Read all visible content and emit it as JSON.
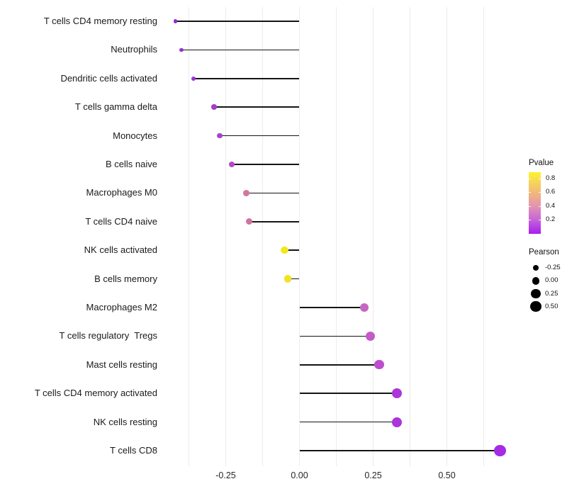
{
  "chart_data": {
    "type": "scatter",
    "subtype": "lollipop",
    "title": "",
    "xlabel": "",
    "ylabel": "",
    "background_color": "#FFFFFF",
    "stem_color": "#141414",
    "grid_color": "#ECECEC",
    "axis_text_color": "#262626",
    "xlim": [
      -0.48,
      0.74
    ],
    "x_ticks": [
      -0.25,
      0,
      0.25,
      0.5
    ],
    "x_tick_labels": [
      "-0.25",
      "0.00",
      "0.25",
      "0.50"
    ],
    "grid": {
      "vertical_lines_from": -0.375,
      "vertical_lines_to": 0.625,
      "vertical_lines_step": 0.125,
      "horizontal_lines": false
    },
    "points": [
      {
        "label": "T cells CD4 memory resting",
        "pearson": -0.42,
        "pvalue_approx": 0.1,
        "color": "#8F2BD6"
      },
      {
        "label": "Neutrophils",
        "pearson": -0.4,
        "pvalue_approx": 0.11,
        "color": "#9230D3"
      },
      {
        "label": "Dendritic cells activated",
        "pearson": -0.36,
        "pvalue_approx": 0.13,
        "color": "#9A34D0"
      },
      {
        "label": "T cells gamma delta",
        "pearson": -0.29,
        "pvalue_approx": 0.18,
        "color": "#A43DCC"
      },
      {
        "label": "Monocytes",
        "pearson": -0.27,
        "pvalue_approx": 0.22,
        "color": "#A840CE"
      },
      {
        "label": "B cells naive",
        "pearson": -0.23,
        "pvalue_approx": 0.27,
        "color": "#B24AC9"
      },
      {
        "label": "Macrophages M0",
        "pearson": -0.18,
        "pvalue_approx": 0.48,
        "color": "#D3779F"
      },
      {
        "label": "T cells CD4 naive",
        "pearson": -0.17,
        "pvalue_approx": 0.47,
        "color": "#D1739E"
      },
      {
        "label": "NK cells activated",
        "pearson": -0.05,
        "pvalue_approx": 0.85,
        "color": "#F1E822"
      },
      {
        "label": "B cells memory",
        "pearson": -0.04,
        "pvalue_approx": 0.87,
        "color": "#F2E320"
      },
      {
        "label": "Macrophages M2",
        "pearson": 0.22,
        "pvalue_approx": 0.35,
        "color": "#C765C3"
      },
      {
        "label": "T cells regulatory  Tregs",
        "pearson": 0.24,
        "pvalue_approx": 0.3,
        "color": "#C35BC8"
      },
      {
        "label": "Mast cells resting",
        "pearson": 0.27,
        "pvalue_approx": 0.24,
        "color": "#BE4CCF"
      },
      {
        "label": "T cells CD4 memory activated",
        "pearson": 0.33,
        "pvalue_approx": 0.14,
        "color": "#AD35DC"
      },
      {
        "label": "NK cells resting",
        "pearson": 0.33,
        "pvalue_approx": 0.14,
        "color": "#AC34DD"
      },
      {
        "label": "T cells CD8",
        "pearson": 0.68,
        "pvalue_approx": 0.06,
        "color": "#A62BE2"
      }
    ],
    "legend_pvalue": {
      "title": "Pvalue",
      "position": "right",
      "range": [
        0,
        0.89
      ],
      "tick_values": [
        0.8,
        0.6,
        0.4,
        0.2
      ],
      "tick_labels": [
        "0.8",
        "0.6",
        "0.4",
        "0.2"
      ],
      "gradient_stops": [
        {
          "color": "#FBF326",
          "pos": 0
        },
        {
          "color": "#F7D75A",
          "pos": 15
        },
        {
          "color": "#F0B57D",
          "pos": 35
        },
        {
          "color": "#E295B0",
          "pos": 55
        },
        {
          "color": "#C767D8",
          "pos": 76
        },
        {
          "color": "#A81DF0",
          "pos": 100
        }
      ]
    },
    "legend_pearson": {
      "title": "Pearson",
      "position": "right",
      "dot_color": "#000000",
      "entries": [
        {
          "label": "-0.25",
          "value": -0.25
        },
        {
          "label": "0.00",
          "value": 0
        },
        {
          "label": "0.25",
          "value": 0.25
        },
        {
          "label": "0.50",
          "value": 0.5
        }
      ]
    }
  }
}
